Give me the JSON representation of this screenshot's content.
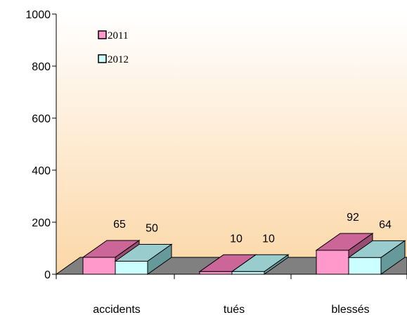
{
  "chart_data": {
    "type": "bar",
    "categories": [
      "accidents",
      "tués",
      "blessés"
    ],
    "series": [
      {
        "name": "2011",
        "values": [
          65,
          10,
          92
        ],
        "color": "#ff99cc",
        "top_color": "#cc6699",
        "side_color": "#994d73"
      },
      {
        "name": "2012",
        "values": [
          50,
          10,
          64
        ],
        "color": "#ccffff",
        "top_color": "#99cccc",
        "side_color": "#669999"
      }
    ],
    "y_ticks": [
      "0",
      "200",
      "400",
      "600",
      "800",
      "1000"
    ],
    "ylim": [
      0,
      1000
    ],
    "title": "",
    "xlabel": "",
    "ylabel": "",
    "legend_position": "top-left",
    "grid": false,
    "three_d": true,
    "colors": {
      "background_top": "#ffffff",
      "background_bottom": "#fcd7a6",
      "floor": "#808080",
      "axis": "#000000"
    }
  }
}
